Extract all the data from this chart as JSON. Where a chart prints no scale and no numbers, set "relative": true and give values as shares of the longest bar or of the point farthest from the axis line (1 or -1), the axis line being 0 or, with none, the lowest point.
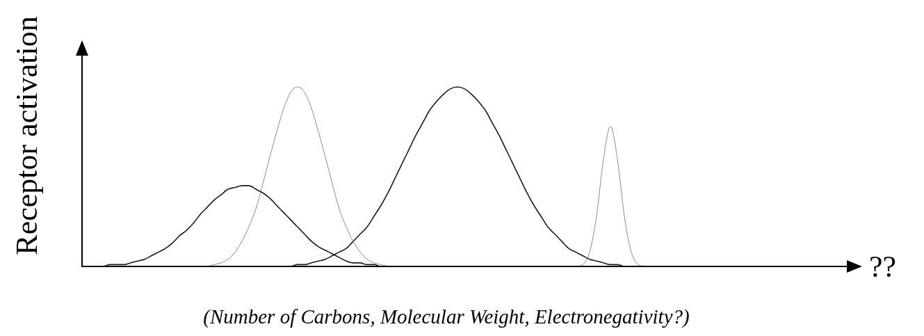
{
  "chart_data": {
    "type": "line",
    "relative": true,
    "ylabel": "Receptor activation",
    "xlabel": "??",
    "annotations": [
      "(Number of Carbons, Molecular Weight, Electronegativity?)"
    ],
    "categories": [
      null,
      null,
      null,
      null,
      null,
      null,
      null,
      null,
      null,
      null,
      null,
      null,
      null,
      null,
      null,
      null,
      null,
      null,
      null,
      null,
      null,
      null,
      null,
      null,
      null,
      null,
      null,
      null,
      null,
      null,
      null,
      null,
      null,
      null,
      null,
      null,
      null,
      null,
      null,
      null,
      null,
      null,
      null,
      null,
      null,
      null,
      null,
      null,
      null,
      null,
      null,
      null,
      null,
      null,
      null,
      null,
      null,
      null,
      null,
      null,
      null,
      null,
      null,
      null,
      null,
      null,
      null,
      null,
      null,
      null,
      null,
      null,
      null,
      null,
      null,
      null,
      null,
      null,
      null,
      null,
      null,
      null,
      null,
      null,
      null,
      null,
      null,
      null,
      null,
      null,
      null,
      null,
      null,
      null,
      null,
      null,
      null,
      null,
      null,
      null,
      null,
      null,
      null,
      null,
      null,
      null,
      null,
      null,
      null,
      null,
      null,
      null
    ],
    "series": [
      {
        "color": "#1a1a1a",
        "values": [
          null,
          null,
          0,
          0,
          0.01,
          0.01,
          0.01,
          0.02,
          0.03,
          0.04,
          0.06,
          0.08,
          0.1,
          0.13,
          0.17,
          0.2,
          0.24,
          0.29,
          0.33,
          0.37,
          0.4,
          0.43,
          0.44,
          0.45,
          0.45,
          0.43,
          0.41,
          0.38,
          0.34,
          0.3,
          0.26,
          0.22,
          0.18,
          0.14,
          0.11,
          0.09,
          0.07,
          0.05,
          0.03,
          0.02,
          0.02,
          0.01,
          0.01,
          0,
          0,
          null,
          null,
          null,
          null,
          null,
          null,
          null,
          null,
          null,
          null,
          null,
          null,
          null,
          null,
          null,
          null,
          null,
          null,
          null,
          null,
          null,
          null,
          null,
          null,
          null,
          null,
          null,
          null,
          null,
          null,
          null,
          null,
          null,
          null,
          null,
          null,
          null,
          null,
          null,
          null,
          null,
          null,
          null,
          null,
          null,
          null,
          null,
          null,
          null,
          null,
          null,
          null,
          null,
          null,
          null,
          null,
          null,
          null,
          null,
          null,
          null,
          null,
          null,
          null,
          null,
          null,
          null
        ]
      },
      {
        "color": "#8c8c8c",
        "values": [
          null,
          null,
          null,
          null,
          null,
          null,
          null,
          null,
          null,
          null,
          null,
          null,
          null,
          null,
          null,
          null,
          null,
          null,
          0,
          0.01,
          0.02,
          0.04,
          0.08,
          0.14,
          0.22,
          0.32,
          0.46,
          0.61,
          0.75,
          0.88,
          0.97,
          1,
          0.97,
          0.88,
          0.75,
          0.61,
          0.46,
          0.32,
          0.22,
          0.14,
          0.08,
          0.04,
          0.02,
          0.01,
          0,
          null,
          null,
          null,
          null,
          null,
          null,
          null,
          null,
          null,
          null,
          null,
          null,
          null,
          null,
          null,
          null,
          null,
          null,
          null,
          null,
          null,
          null,
          null,
          null,
          null,
          null,
          null,
          null,
          null,
          null,
          null,
          null,
          null,
          null,
          null,
          null,
          null,
          null,
          null,
          null,
          null,
          null,
          null,
          null,
          null,
          null,
          null,
          null,
          null,
          null,
          null,
          null,
          null,
          null,
          null,
          null,
          null,
          null,
          null,
          null,
          null,
          null,
          null,
          null,
          null,
          null,
          null
        ]
      },
      {
        "color": "#1a1a1a",
        "values": [
          null,
          null,
          null,
          null,
          null,
          null,
          null,
          null,
          null,
          null,
          null,
          null,
          null,
          null,
          null,
          null,
          null,
          null,
          null,
          null,
          null,
          null,
          null,
          null,
          null,
          null,
          null,
          null,
          null,
          null,
          0,
          0.01,
          0.01,
          0.02,
          0.03,
          0.04,
          0.06,
          0.08,
          0.1,
          0.14,
          0.18,
          0.22,
          0.28,
          0.34,
          0.41,
          0.49,
          0.57,
          0.65,
          0.73,
          0.8,
          0.87,
          0.92,
          0.96,
          0.99,
          1,
          0.99,
          0.96,
          0.92,
          0.87,
          0.8,
          0.73,
          0.65,
          0.57,
          0.49,
          0.41,
          0.34,
          0.28,
          0.22,
          0.18,
          0.14,
          0.1,
          0.08,
          0.06,
          0.04,
          0.03,
          0.02,
          0.01,
          0.01,
          0,
          null,
          null,
          null,
          null,
          null,
          null,
          null,
          null,
          null,
          null,
          null,
          null,
          null,
          null,
          null,
          null,
          null,
          null,
          null,
          null,
          null,
          null,
          null,
          null,
          null,
          null,
          null,
          null,
          null,
          null,
          null,
          null,
          null
        ]
      },
      {
        "color": "#8c8c8c",
        "values": [
          null,
          null,
          null,
          null,
          null,
          null,
          null,
          null,
          null,
          null,
          null,
          null,
          null,
          null,
          null,
          null,
          null,
          null,
          null,
          null,
          null,
          null,
          null,
          null,
          null,
          null,
          null,
          null,
          null,
          null,
          null,
          null,
          null,
          null,
          null,
          null,
          null,
          null,
          null,
          null,
          null,
          null,
          null,
          null,
          null,
          null,
          null,
          null,
          null,
          null,
          null,
          null,
          null,
          null,
          null,
          null,
          null,
          null,
          null,
          null,
          null,
          null,
          null,
          null,
          null,
          null,
          null,
          null,
          null,
          null,
          null,
          0,
          0.01,
          0.08,
          0.28,
          0.6,
          0.78,
          0.6,
          0.28,
          0.08,
          0.01,
          0,
          null,
          null,
          null,
          null,
          null,
          null,
          null,
          null,
          null,
          null,
          null,
          null,
          null,
          null,
          null,
          null,
          null,
          null,
          null,
          null,
          null,
          null,
          null,
          null,
          null,
          null,
          null,
          null,
          null,
          null
        ]
      }
    ]
  }
}
